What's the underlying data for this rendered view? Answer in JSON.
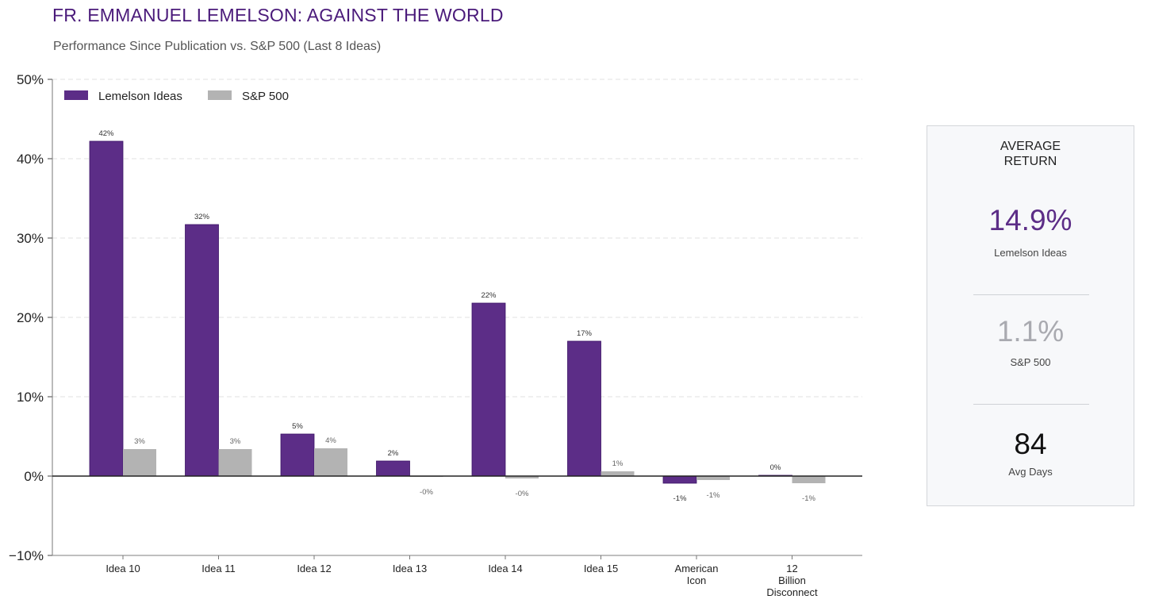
{
  "header": {
    "title": "FR. EMMANUEL LEMELSON: AGAINST THE WORLD",
    "subtitle": "Performance Since Publication vs. S&P 500 (Last 8 Ideas)"
  },
  "chart_data": {
    "type": "bar",
    "categories": [
      [
        "Idea 10"
      ],
      [
        "Idea 11"
      ],
      [
        "Idea 12"
      ],
      [
        "Idea 13"
      ],
      [
        "Idea 14"
      ],
      [
        "Idea 15"
      ],
      [
        "American",
        "Icon"
      ],
      [
        "12",
        "Billion",
        "Disconnect"
      ]
    ],
    "series": [
      {
        "name": "Lemelson Ideas",
        "color": "#5c2d87",
        "values": [
          42.2,
          31.7,
          5.3,
          1.9,
          21.8,
          17.0,
          -0.9,
          0.1
        ],
        "labels": [
          "42%",
          "32%",
          "5%",
          "2%",
          "22%",
          "17%",
          "-1%",
          "0%"
        ]
      },
      {
        "name": "S&P 500",
        "color": "#b3b3b3",
        "values": [
          3.4,
          3.4,
          3.5,
          -0.1,
          -0.3,
          0.6,
          -0.5,
          -0.9
        ],
        "labels": [
          "3%",
          "3%",
          "4%",
          "-0%",
          "-0%",
          "1%",
          "-1%",
          "-1%"
        ]
      }
    ],
    "ylim": [
      -10,
      50
    ],
    "yticks": [
      -10,
      0,
      10,
      20,
      30,
      40,
      50
    ],
    "ytick_labels": [
      "−10%",
      "0%",
      "10%",
      "20%",
      "30%",
      "40%",
      "50%"
    ],
    "grid": true,
    "legend_position": "top-left",
    "xlabel": "",
    "ylabel": ""
  },
  "summary": {
    "heading_line1": "AVERAGE",
    "heading_line2": "RETURN",
    "lemelson_value": "14.9%",
    "lemelson_label": "Lemelson Ideas",
    "sp_value": "1.1%",
    "sp_label": "S&P 500",
    "days_value": "84",
    "days_label": "Avg Days",
    "colors": {
      "lemelson": "#5c2d87",
      "sp": "#a9aab0",
      "days": "#111111"
    }
  }
}
